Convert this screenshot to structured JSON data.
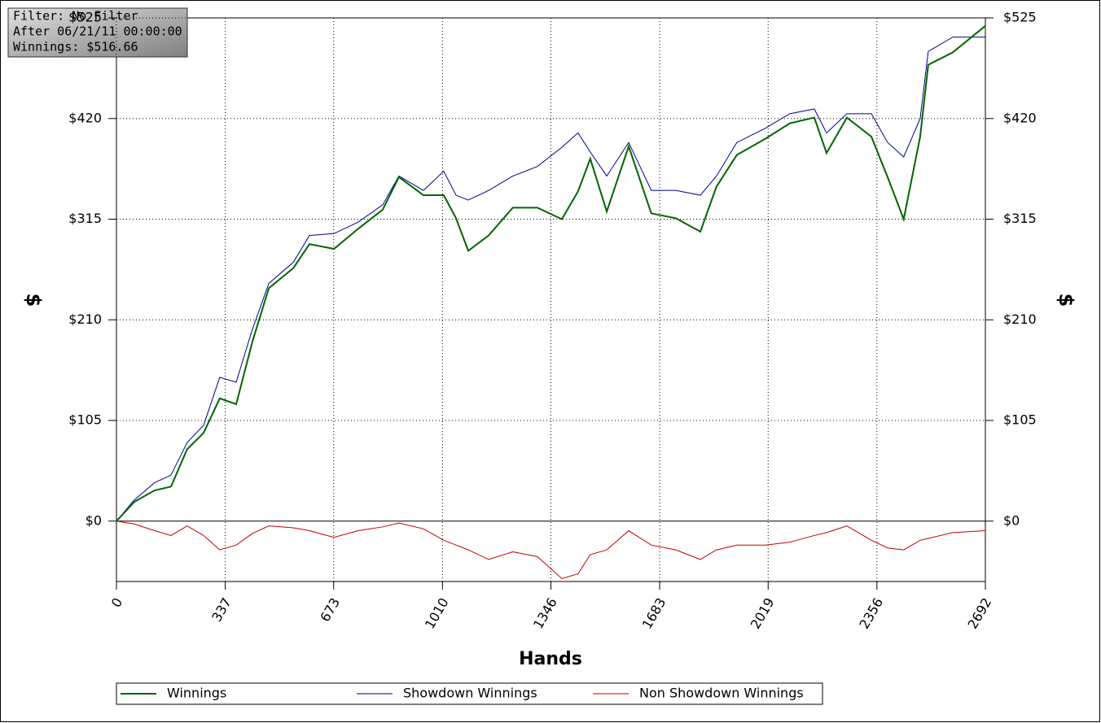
{
  "chart_data": {
    "type": "line",
    "annotations": [
      "Filter: No Filter",
      "After 06/21/11 00:00:00",
      "Winnings: $516.66"
    ],
    "x_label": "Hands",
    "y_label": "$",
    "y2_label": "$",
    "x": [
      0,
      55,
      118,
      169,
      219,
      270,
      320,
      371,
      421,
      472,
      548,
      598,
      674,
      749,
      825,
      875,
      951,
      1014,
      1052,
      1090,
      1153,
      1228,
      1304,
      1380,
      1430,
      1468,
      1519,
      1587,
      1657,
      1733,
      1809,
      1859,
      1922,
      2011,
      2086,
      2162,
      2200,
      2263,
      2339,
      2389,
      2439,
      2490,
      2515,
      2591,
      2692
    ],
    "series": [
      {
        "name": "Winnings",
        "color": "#006400",
        "values": [
          0,
          20,
          32,
          36,
          75,
          92,
          128,
          122,
          187,
          243,
          264,
          289,
          284,
          305,
          325,
          359,
          340,
          340,
          316,
          282,
          298,
          327,
          327,
          315,
          344,
          378,
          323,
          391,
          321,
          316,
          302,
          349,
          382,
          399,
          415,
          421,
          384,
          421,
          401,
          359,
          315,
          401,
          476,
          489,
          516.66
        ]
      },
      {
        "name": "Showdown Winnings",
        "color": "#00008b",
        "values": [
          0,
          22,
          40,
          48,
          82,
          100,
          150,
          145,
          200,
          248,
          270,
          298,
          300,
          312,
          330,
          360,
          345,
          365,
          340,
          335,
          345,
          360,
          370,
          390,
          405,
          385,
          360,
          395,
          345,
          345,
          340,
          360,
          395,
          410,
          425,
          430,
          405,
          425,
          425,
          395,
          380,
          420,
          490,
          505,
          505
        ]
      },
      {
        "name": "Non Showdown Winnings",
        "color": "#c00000",
        "values": [
          0,
          -3,
          -10,
          -15,
          -5,
          -15,
          -30,
          -25,
          -13,
          -5,
          -7,
          -10,
          -17,
          -10,
          -6,
          -2,
          -8,
          -20,
          -25,
          -30,
          -40,
          -32,
          -37,
          -60,
          -55,
          -35,
          -30,
          -10,
          -25,
          -30,
          -40,
          -30,
          -25,
          -25,
          -22,
          -15,
          -12,
          -5,
          -20,
          -28,
          -30,
          -20,
          -18,
          -12,
          -10
        ]
      }
    ],
    "xlim": [
      0,
      2692
    ],
    "xticks": [
      0,
      337,
      673,
      1010,
      1346,
      1683,
      2019,
      2356,
      2692
    ],
    "ylim": [
      -63,
      525
    ],
    "yticks": [
      {
        "value": 0,
        "label": "$0"
      },
      {
        "value": 105,
        "label": "$105"
      },
      {
        "value": 210,
        "label": "$210"
      },
      {
        "value": 315,
        "label": "$315"
      },
      {
        "value": 420,
        "label": "$420"
      },
      {
        "value": 525,
        "label": "$525"
      }
    ],
    "grid": true,
    "legend": "bottom"
  }
}
